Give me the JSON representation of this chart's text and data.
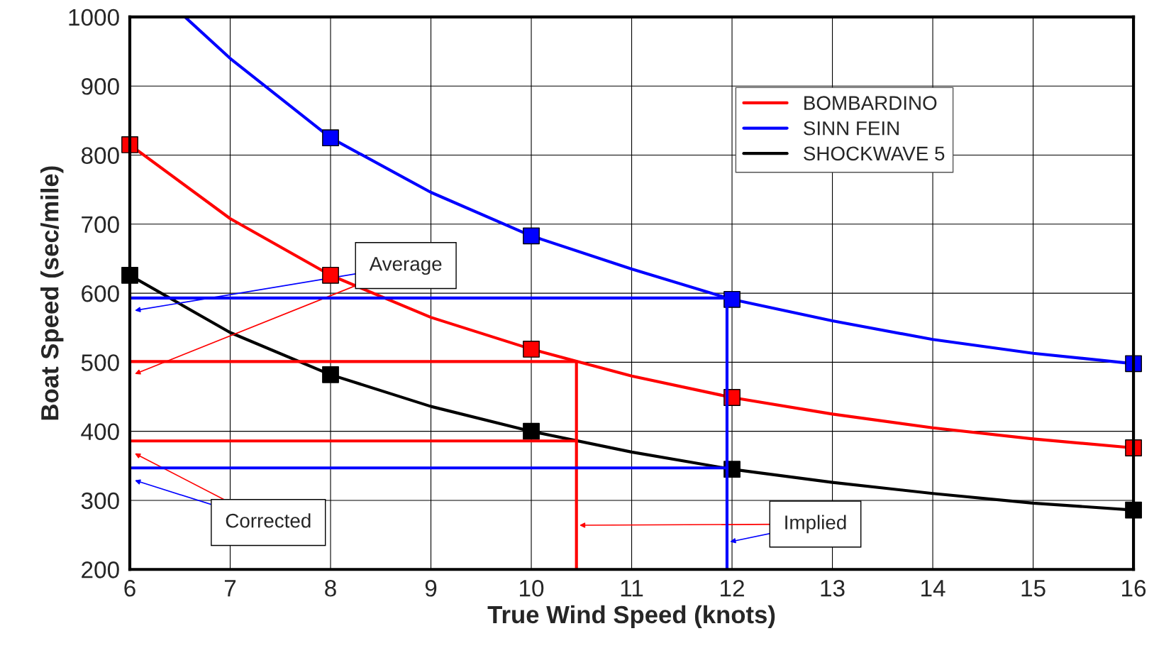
{
  "chart_data": {
    "type": "line",
    "xlabel": "True Wind Speed (knots)",
    "ylabel": "Boat Speed (sec/mile)",
    "xlim": [
      6,
      16
    ],
    "xticks": [
      6,
      7,
      8,
      9,
      10,
      11,
      12,
      13,
      14,
      15,
      16
    ],
    "ylim": [
      200,
      1000
    ],
    "yticks": [
      200,
      300,
      400,
      500,
      600,
      700,
      800,
      900,
      1000
    ],
    "grid": true,
    "legend": "top right",
    "series": [
      {
        "name": "BOMBARDINO",
        "color": "#ff0000",
        "marker": "none",
        "x": [
          6,
          7,
          8,
          9,
          10,
          11,
          12,
          13,
          14,
          15,
          16
        ],
        "values": [
          815,
          708,
          626,
          565,
          519,
          480,
          449,
          425,
          405,
          389,
          376
        ]
      },
      {
        "name": "SINN FEIN",
        "color": "#0000ff",
        "marker": "none",
        "x": [
          6.55,
          7,
          8,
          9,
          10,
          11,
          12,
          13,
          14,
          15,
          16
        ],
        "values": [
          1000,
          940,
          825,
          746,
          683,
          635,
          591,
          560,
          533,
          513,
          498
        ]
      },
      {
        "name": "SHOCKWAVE 5",
        "color": "#000000",
        "marker": "none",
        "x": [
          6,
          7,
          8,
          9,
          10,
          11,
          12,
          13,
          14,
          15,
          16
        ],
        "values": [
          626,
          543,
          482,
          436,
          400,
          370,
          345,
          326,
          310,
          296,
          286
        ]
      },
      {
        "color": "#ff0000",
        "type": "scatter",
        "marker": "square",
        "x": [
          6,
          8,
          10,
          12,
          16
        ],
        "values": [
          815,
          626,
          519,
          449,
          376
        ]
      },
      {
        "color": "#0000ff",
        "type": "scatter",
        "marker": "square",
        "x": [
          8,
          10,
          12,
          16
        ],
        "values": [
          825,
          683,
          591,
          498
        ]
      },
      {
        "color": "#000000",
        "type": "scatter",
        "marker": "square",
        "x": [
          6,
          8,
          10,
          12,
          16
        ],
        "values": [
          626,
          482,
          400,
          345,
          286
        ]
      },
      {
        "color": "#ff0000",
        "marker": "none",
        "x": [
          6,
          10.45,
          10.45
        ],
        "values": [
          501,
          501,
          200
        ]
      },
      {
        "color": "#ff0000",
        "marker": "none",
        "x": [
          6,
          10.45
        ],
        "values": [
          386,
          386
        ]
      },
      {
        "color": "#0000ff",
        "marker": "none",
        "x": [
          6,
          11.95,
          11.95
        ],
        "values": [
          593,
          593,
          200
        ]
      },
      {
        "color": "#0000ff",
        "marker": "none",
        "x": [
          6,
          11.95
        ],
        "values": [
          347,
          347
        ]
      }
    ],
    "annotations": [
      "Average",
      "Corrected",
      "Implied"
    ]
  }
}
